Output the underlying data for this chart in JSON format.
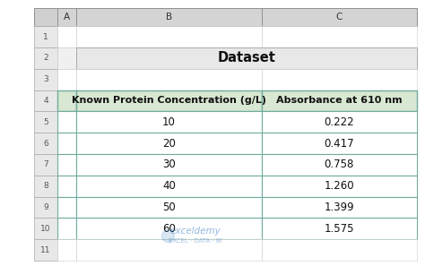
{
  "title": "Dataset",
  "col1_header": "Known Protein Concentration (g/L)",
  "col2_header": "Absorbance at 610 nm",
  "rows": [
    [
      10,
      0.222
    ],
    [
      20,
      0.417
    ],
    [
      30,
      0.758
    ],
    [
      40,
      1.26
    ],
    [
      50,
      1.399
    ],
    [
      60,
      1.575
    ]
  ],
  "row_labels": [
    "5",
    "6",
    "7",
    "8",
    "9",
    "10"
  ],
  "col_labels": [
    "A",
    "B",
    "C"
  ],
  "header_bg": "#d9e8d2",
  "header_border": "#70ad9e",
  "cell_bg": "#ffffff",
  "cell_border": "#b0b0b0",
  "title_row_bg": "#e8e8e8",
  "empty_row_bg": "#f5f5f5",
  "sheet_bg": "#ffffff",
  "col_header_bg": "#e0e0e0",
  "row_header_bg": "#f0f0f0",
  "watermark_text": "exceldemy\nEXCEL · DATA · BI",
  "watermark_color": "#3a7fc1",
  "title_fontsize": 10.5,
  "header_fontsize": 8,
  "cell_fontsize": 8.5,
  "figsize": [
    4.74,
    2.97
  ],
  "dpi": 100
}
